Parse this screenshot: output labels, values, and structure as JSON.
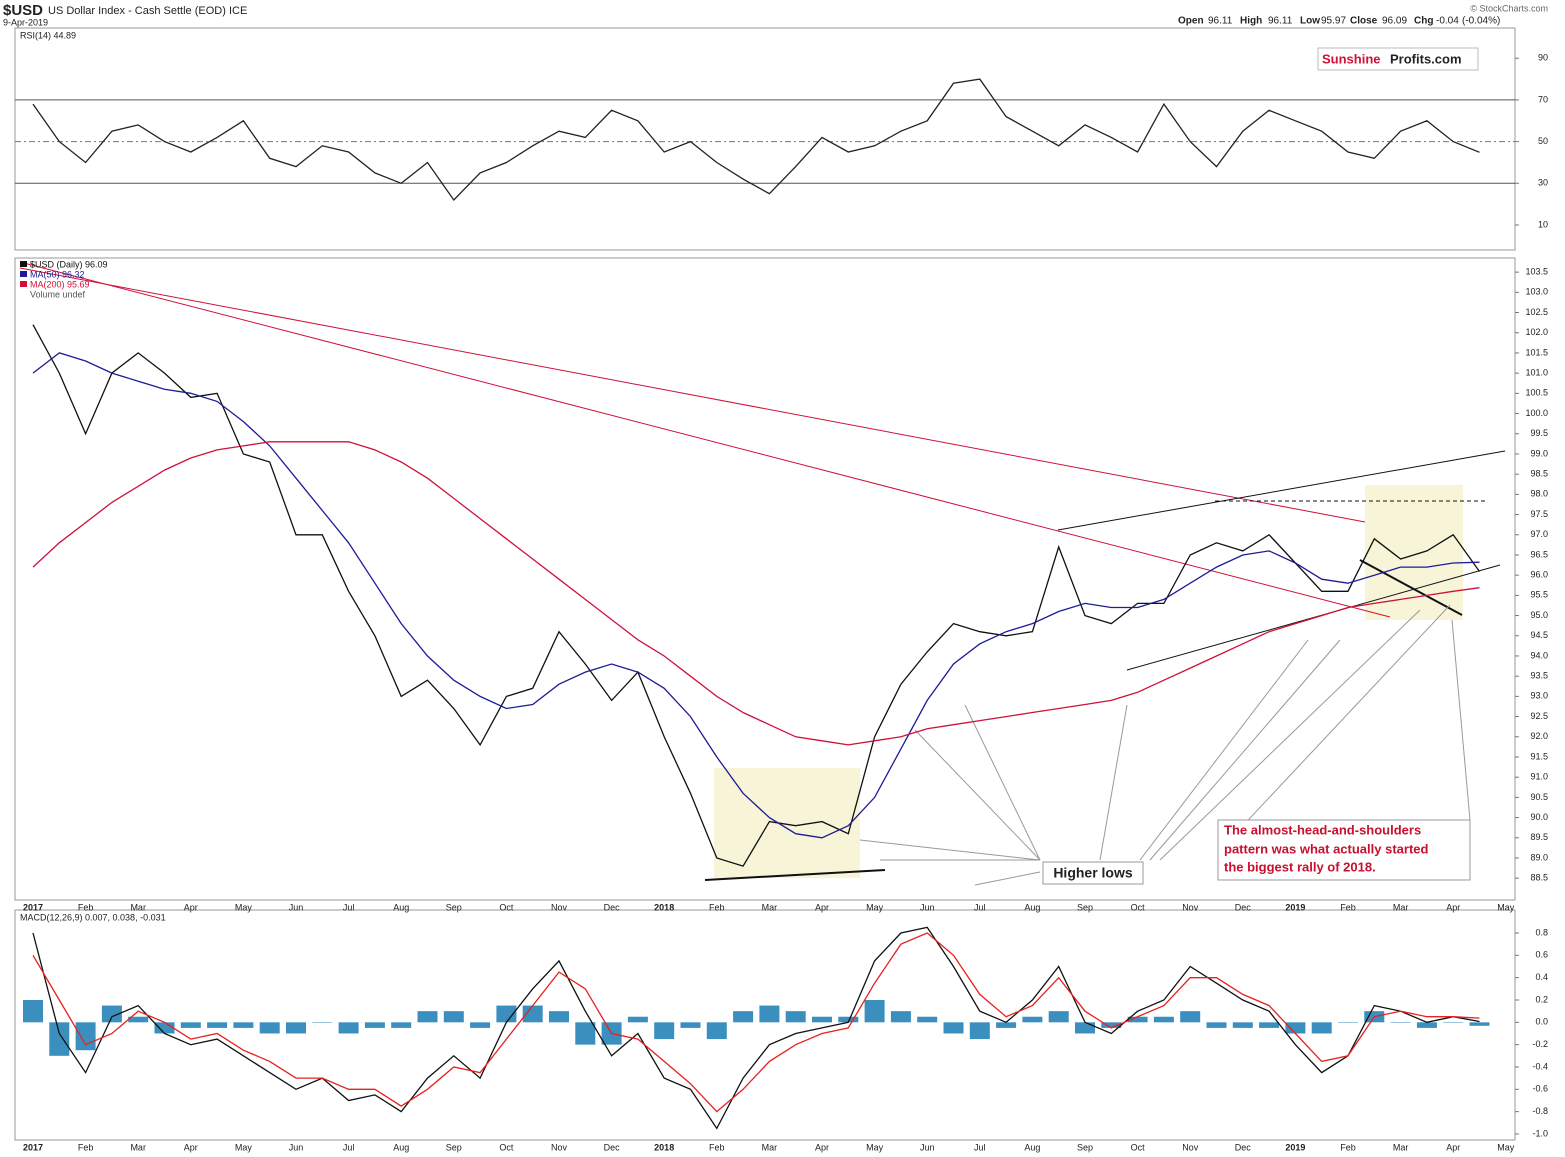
{
  "header": {
    "title": "$USD",
    "subtitle": "US Dollar Index - Cash Settle (EOD) ICE",
    "date": "9-Apr-2019",
    "watermark": "© StockCharts.com",
    "quote": {
      "open_label": "Open",
      "open": 96.11,
      "high_label": "High",
      "high": 96.11,
      "low_label": "Low",
      "low": 95.97,
      "close_label": "Close",
      "close": 96.09,
      "chg_label": "Chg",
      "chg": -0.04,
      "chg_pct": "(-0.04%)"
    },
    "logo": {
      "part1": "Sunshine",
      "part2": "Profits.com"
    }
  },
  "chart_data": [
    {
      "type": "line",
      "legend_text": "RSI(14) 44.89",
      "ylim": [
        -2,
        104.5
      ],
      "yticks": [
        10,
        30,
        50,
        70,
        90
      ],
      "reference_lines": [
        30,
        70
      ],
      "center_line": 50,
      "series": [
        {
          "color": "#222222",
          "values": [
            68,
            50,
            40,
            55,
            58,
            50,
            45,
            52,
            60,
            42,
            38,
            48,
            45,
            35,
            30,
            40,
            22,
            35,
            40,
            48,
            55,
            52,
            65,
            60,
            45,
            50,
            40,
            32,
            25,
            38,
            52,
            45,
            48,
            55,
            60,
            78,
            80,
            62,
            55,
            48,
            58,
            52,
            45,
            68,
            50,
            38,
            55,
            65,
            60,
            55,
            45,
            42,
            55,
            60,
            50,
            44.89,
            null
          ]
        }
      ]
    },
    {
      "type": "line",
      "ylim": [
        87.96,
        103.85
      ],
      "yticks": [
        88.5,
        {
          "value": 89,
          "label": "89.0"
        },
        89.5,
        {
          "value": 90,
          "label": "90.0"
        },
        90.5,
        {
          "value": 91,
          "label": "91.0"
        },
        91.5,
        {
          "value": 92,
          "label": "92.0"
        },
        92.5,
        {
          "value": 93,
          "label": "93.0"
        },
        93.5,
        {
          "value": 94,
          "label": "94.0"
        },
        94.5,
        {
          "value": 95,
          "label": "95.0"
        },
        95.5,
        {
          "value": 96,
          "label": "96.0"
        },
        96.5,
        {
          "value": 97,
          "label": "97.0"
        },
        97.5,
        {
          "value": 98,
          "label": "98.0"
        },
        98.5,
        {
          "value": 99,
          "label": "99.0"
        },
        99.5,
        {
          "value": 100,
          "label": "100.0"
        },
        100.5,
        {
          "value": 101,
          "label": "101.0"
        },
        101.5,
        {
          "value": 102,
          "label": "102.0"
        },
        102.5,
        {
          "value": 103,
          "label": "103.0"
        },
        103.5
      ],
      "categories": [
        "2017",
        null,
        "Feb",
        null,
        "Mar",
        null,
        "Apr",
        null,
        "May",
        null,
        "Jun",
        null,
        "Jul",
        null,
        "Aug",
        null,
        "Sep",
        null,
        "Oct",
        null,
        "Nov",
        null,
        "Dec",
        null,
        "2018",
        null,
        "Feb",
        null,
        "Mar",
        null,
        "Apr",
        null,
        "May",
        null,
        "Jun",
        null,
        "Jul",
        null,
        "Aug",
        null,
        "Sep",
        null,
        "Oct",
        null,
        "Nov",
        null,
        "Dec",
        null,
        "2019",
        null,
        "Feb",
        null,
        "Mar",
        null,
        "Apr",
        null,
        "May"
      ],
      "series": [
        {
          "name": "$USD (Daily) 96.09",
          "color": "#111111",
          "values": [
            102.2,
            101.0,
            99.5,
            101.0,
            101.5,
            101.0,
            100.4,
            100.5,
            99.0,
            98.8,
            97.0,
            97.0,
            95.6,
            94.5,
            93.0,
            93.4,
            92.7,
            91.8,
            93.0,
            93.2,
            94.6,
            93.8,
            92.9,
            93.6,
            92.0,
            90.6,
            89.0,
            88.8,
            89.9,
            89.8,
            89.9,
            89.6,
            92.0,
            93.3,
            94.1,
            94.8,
            94.6,
            94.5,
            94.6,
            96.7,
            95.0,
            94.8,
            95.3,
            95.3,
            96.5,
            96.8,
            96.6,
            97.0,
            96.3,
            95.6,
            95.6,
            96.9,
            96.4,
            96.6,
            97.0,
            96.09,
            null
          ]
        },
        {
          "name": "MA(50) 96.32",
          "color": "#1c1c96",
          "values": [
            101.0,
            101.5,
            101.3,
            101.0,
            100.8,
            100.6,
            100.5,
            100.3,
            99.8,
            99.2,
            98.4,
            97.6,
            96.8,
            95.8,
            94.8,
            94.0,
            93.4,
            93.0,
            92.7,
            92.8,
            93.3,
            93.6,
            93.8,
            93.6,
            93.2,
            92.5,
            91.5,
            90.6,
            90.0,
            89.6,
            89.5,
            89.8,
            90.5,
            91.7,
            92.9,
            93.8,
            94.3,
            94.6,
            94.8,
            95.1,
            95.3,
            95.2,
            95.2,
            95.4,
            95.8,
            96.2,
            96.5,
            96.6,
            96.3,
            95.9,
            95.8,
            96.0,
            96.2,
            96.2,
            96.3,
            96.32,
            null
          ]
        },
        {
          "name": "MA(200) 95.69",
          "color": "#d0103a",
          "values": [
            96.2,
            96.8,
            97.3,
            97.8,
            98.2,
            98.6,
            98.9,
            99.1,
            99.2,
            99.3,
            99.3,
            99.3,
            99.3,
            99.1,
            98.8,
            98.4,
            97.9,
            97.4,
            96.9,
            96.4,
            95.9,
            95.4,
            94.9,
            94.4,
            94.0,
            93.5,
            93.0,
            92.6,
            92.3,
            92.0,
            91.9,
            91.8,
            91.9,
            92.0,
            92.2,
            92.3,
            92.4,
            92.5,
            92.6,
            92.7,
            92.8,
            92.9,
            93.1,
            93.4,
            93.7,
            94.0,
            94.3,
            94.6,
            94.8,
            95.0,
            95.2,
            95.3,
            95.4,
            95.5,
            95.6,
            95.69,
            null
          ]
        }
      ],
      "legend_extra": "Volume undef",
      "annotations": {
        "higher_lows": "Higher lows",
        "note": [
          "The almost-head-and-shoulders",
          "pattern was what actually started",
          "the biggest rally of 2018."
        ]
      }
    },
    {
      "type": "line",
      "legend_text": "MACD(12,26,9) 0.007, 0.038, -0.031",
      "ylim": [
        -1.054,
        1.006
      ],
      "yticks": [
        {
          "value": -1,
          "label": "-1.0"
        },
        -0.8,
        -0.6,
        -0.4,
        -0.2,
        {
          "value": 0,
          "label": "0.0"
        },
        0.2,
        0.4,
        0.6,
        0.8
      ],
      "series": [
        {
          "type": "bar",
          "color": "#3a8fbf",
          "values": [
            0.2,
            -0.3,
            -0.25,
            0.15,
            0.05,
            -0.1,
            -0.05,
            -0.05,
            -0.05,
            -0.1,
            -0.1,
            0.0,
            -0.1,
            -0.05,
            -0.05,
            0.1,
            0.1,
            -0.05,
            0.15,
            0.15,
            0.1,
            -0.2,
            -0.2,
            0.05,
            -0.15,
            -0.05,
            -0.15,
            0.1,
            0.15,
            0.1,
            0.05,
            0.05,
            0.2,
            0.1,
            0.05,
            -0.1,
            -0.15,
            -0.05,
            0.05,
            0.1,
            -0.1,
            -0.05,
            0.05,
            0.05,
            0.1,
            -0.05,
            -0.05,
            -0.05,
            -0.1,
            -0.1,
            0.0,
            0.1,
            0.0,
            -0.05,
            0.0,
            -0.031,
            null
          ]
        },
        {
          "color": "#111111",
          "values": [
            0.8,
            -0.1,
            -0.45,
            0.05,
            0.15,
            -0.1,
            -0.2,
            -0.15,
            -0.3,
            -0.45,
            -0.6,
            -0.5,
            -0.7,
            -0.65,
            -0.8,
            -0.5,
            -0.3,
            -0.5,
            0.0,
            0.3,
            0.55,
            0.1,
            -0.3,
            -0.1,
            -0.5,
            -0.6,
            -0.95,
            -0.5,
            -0.2,
            -0.1,
            -0.05,
            0.0,
            0.55,
            0.8,
            0.85,
            0.5,
            0.1,
            0.0,
            0.2,
            0.5,
            0.0,
            -0.1,
            0.1,
            0.2,
            0.5,
            0.35,
            0.2,
            0.1,
            -0.2,
            -0.45,
            -0.3,
            0.15,
            0.1,
            0.0,
            0.05,
            0.007,
            null
          ]
        },
        {
          "color": "#e8201e",
          "values": [
            0.6,
            0.2,
            -0.2,
            -0.1,
            0.1,
            0.0,
            -0.15,
            -0.1,
            -0.25,
            -0.35,
            -0.5,
            -0.5,
            -0.6,
            -0.6,
            -0.75,
            -0.6,
            -0.4,
            -0.45,
            -0.15,
            0.15,
            0.45,
            0.3,
            -0.1,
            -0.15,
            -0.35,
            -0.55,
            -0.8,
            -0.6,
            -0.35,
            -0.2,
            -0.1,
            -0.05,
            0.35,
            0.7,
            0.8,
            0.6,
            0.25,
            0.05,
            0.15,
            0.4,
            0.1,
            -0.05,
            0.05,
            0.15,
            0.4,
            0.4,
            0.25,
            0.15,
            -0.1,
            -0.35,
            -0.3,
            0.05,
            0.1,
            0.05,
            0.05,
            0.038,
            null
          ]
        }
      ]
    }
  ]
}
